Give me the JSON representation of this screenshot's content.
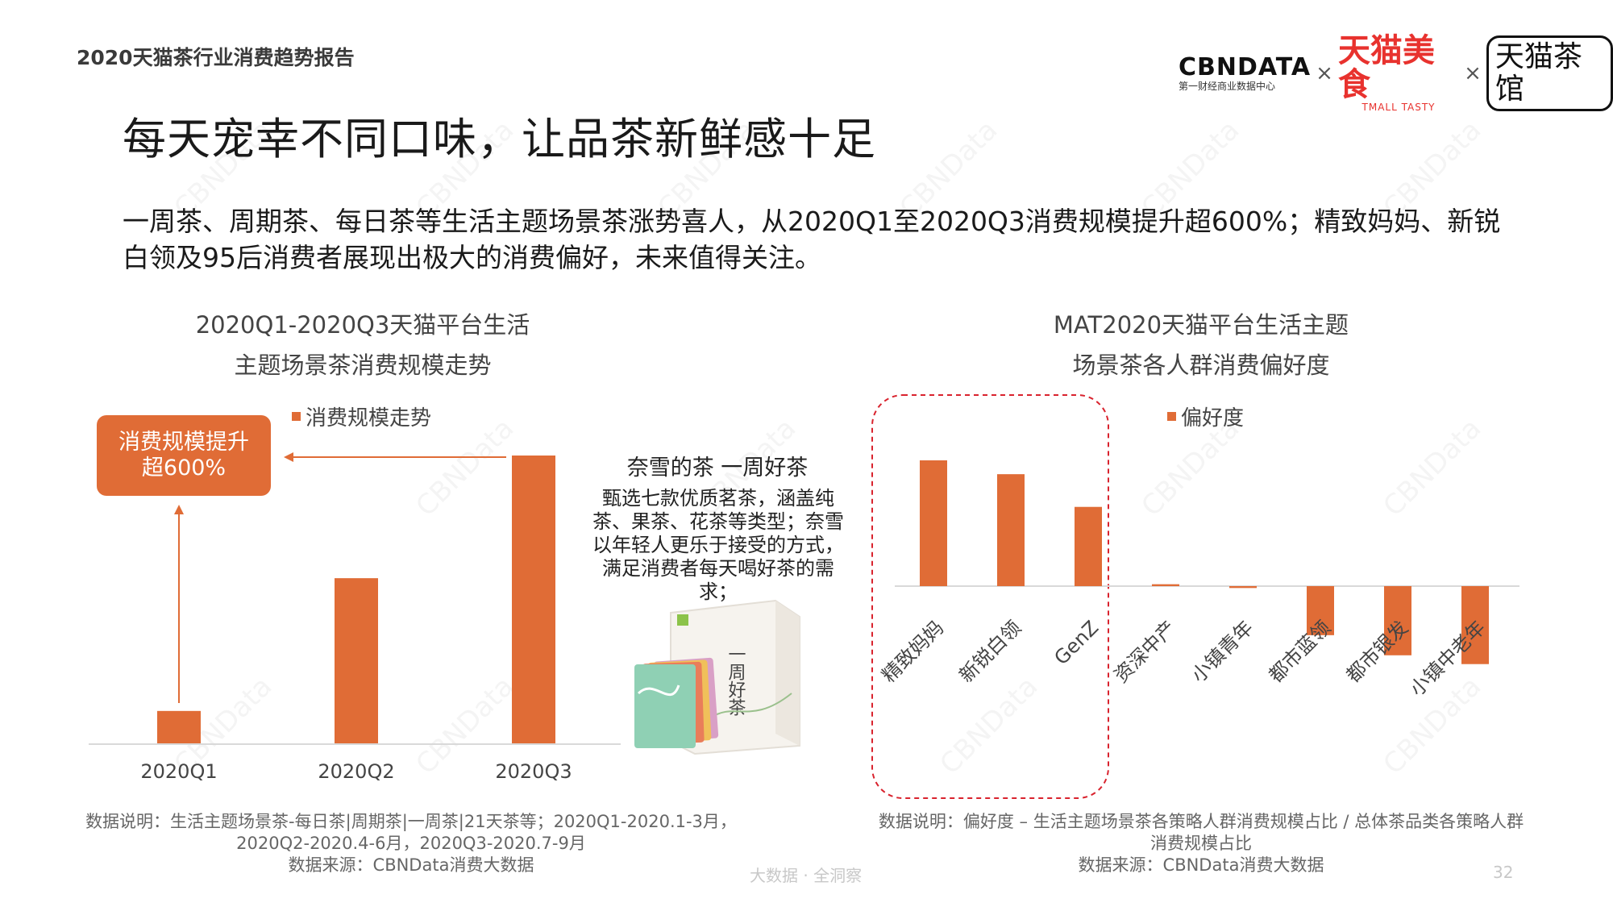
{
  "header": {
    "report_title": "2020天猫茶行业消费趋势报告",
    "logos": {
      "cbndata": "CBNDATA",
      "cbndata_sub": "第一财经商业数据中心",
      "times1": "×",
      "tmall_food": "天猫美食",
      "tmall_food_sub": "TMALL TASTY",
      "times2": "×",
      "tmall_tea": "天猫茶馆"
    }
  },
  "page_title": "每天宠幸不同口味，让品茶新鲜感十足",
  "intro": "一周茶、周期茶、每日茶等生活主题场景茶涨势喜人，从2020Q1至2020Q3消费规模提升超600%；精致妈妈、新锐白领及95后消费者展现出极大的消费偏好，未来值得关注。",
  "left_chart": {
    "title_line1": "2020Q1-2020Q3天猫平台生活",
    "title_line2": "主题场景茶消费规模走势",
    "callout_line1": "消费规模提升",
    "callout_line2": "超600%",
    "note_line1": "数据说明：生活主题场景茶-每日茶|周期茶|一周茶|21天茶等；2020Q1-2020.1-3月，",
    "note_line2": "2020Q2-2020.4-6月，2020Q3-2020.7-9月",
    "note_line3": "数据来源：CBNData消费大数据"
  },
  "product": {
    "name": "奈雪的茶 一周好茶",
    "desc_lines": [
      "甄选七款优质茗茶，涵盖纯",
      "茶、果茶、花茶等类型；奈雪",
      "以年轻人更乐于接受的方式，",
      "满足消费者每天喝好茶的需求；"
    ],
    "box_label": "一周好茶"
  },
  "right_chart": {
    "title_line1": "MAT2020天猫平台生活主题",
    "title_line2": "场景茶各人群消费偏好度",
    "note_line1": "数据说明：偏好度 – 生活主题场景茶各策略人群消费规模占比 / 总体茶品类各策略人群",
    "note_line2": "消费规模占比",
    "note_line3": "数据来源：CBNData消费大数据"
  },
  "footer": {
    "tagline": "大数据 · 全洞察",
    "page_number": "32"
  },
  "watermark_text": "CBNData",
  "colors": {
    "accent": "#e06c36",
    "highlight_border": "#d9232e"
  },
  "chart_data": [
    {
      "type": "bar",
      "legend": [
        "消费规模走势"
      ],
      "categories": [
        "2020Q1",
        "2020Q2",
        "2020Q3"
      ],
      "series": [
        {
          "name": "消费规模走势",
          "values": [
            11.5,
            57.5,
            100
          ]
        }
      ],
      "ylim": [
        0,
        100
      ],
      "grid": false,
      "legend_position": "top"
    },
    {
      "type": "bar",
      "legend": [
        "偏好度"
      ],
      "categories": [
        "精致妈妈",
        "新锐白领",
        "GenZ",
        "资深中产",
        "小镇青年",
        "都市蓝领",
        "都市银发",
        "小镇中老年"
      ],
      "series": [
        {
          "name": "偏好度",
          "values": [
            100,
            89,
            63,
            1.5,
            -1.5,
            -39,
            -55,
            -62
          ]
        }
      ],
      "ylim": [
        -100,
        100
      ],
      "grid": false,
      "legend_position": "top",
      "highlighted_categories": [
        "精致妈妈",
        "新锐白领",
        "GenZ"
      ]
    }
  ]
}
